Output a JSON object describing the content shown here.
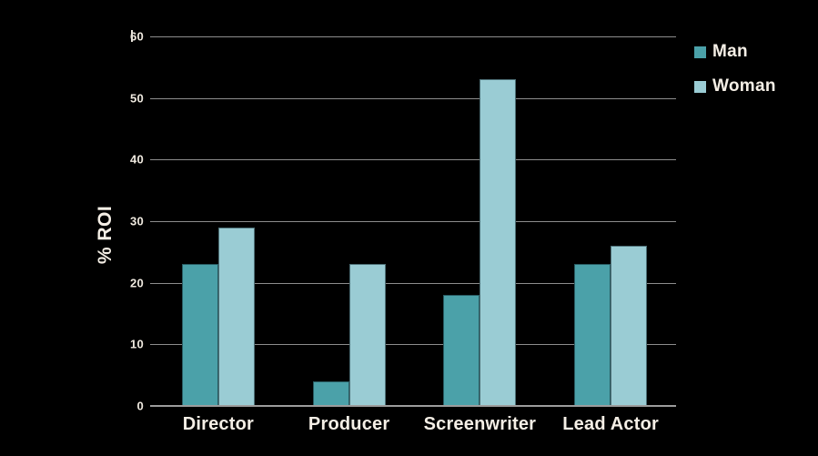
{
  "chart_data": {
    "type": "bar",
    "title": "",
    "xlabel": "",
    "ylabel": "% ROI",
    "categories": [
      "Director",
      "Producer",
      "Screenwriter",
      "Lead Actor"
    ],
    "series": [
      {
        "name": "Man",
        "color": "#4ba1a9",
        "values": [
          23,
          4,
          18,
          23
        ]
      },
      {
        "name": "Woman",
        "color": "#9accd4",
        "values": [
          29,
          23,
          53,
          26
        ]
      }
    ],
    "ylim": [
      0,
      60
    ],
    "yticks": [
      0,
      10,
      20,
      30,
      40,
      50,
      60
    ],
    "grid": true,
    "legend_position": "top-right",
    "colors": {
      "background": "#000000",
      "gridline": "#8d8d8d",
      "axis_line": "#9c9c9c",
      "text": "#f2ece2"
    }
  }
}
